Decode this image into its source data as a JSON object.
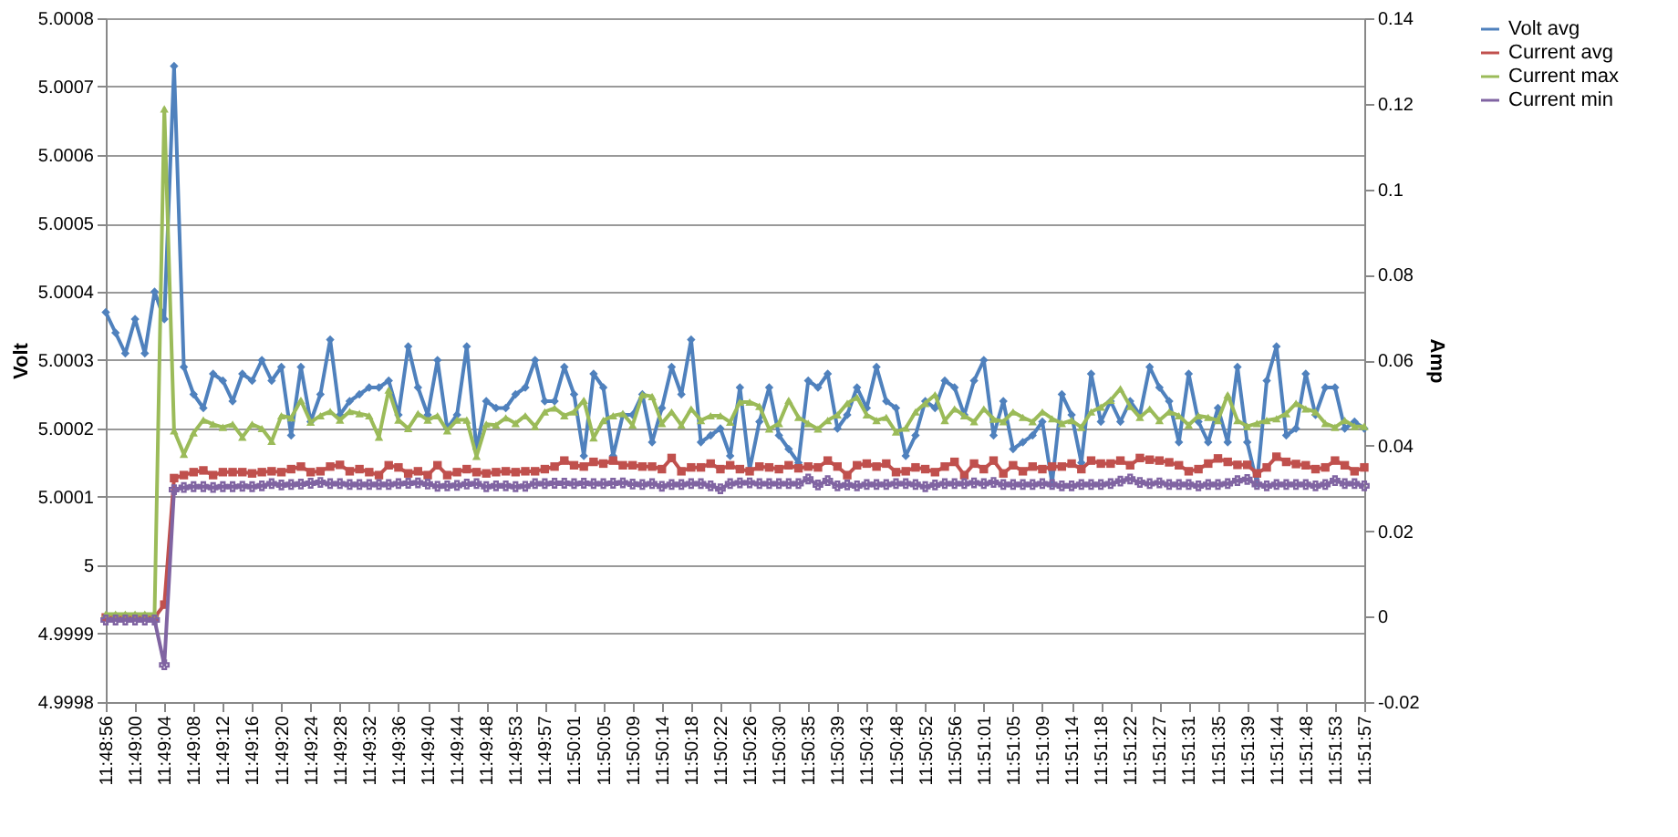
{
  "chart_data": {
    "type": "line",
    "xlabel": null,
    "ylabel": "Volt",
    "y2label": "Amp",
    "categories": [
      "11:48:56",
      null,
      null,
      "11:49:00",
      null,
      null,
      "11:49:04",
      null,
      null,
      "11:49:08",
      null,
      null,
      "11:49:12",
      null,
      null,
      "11:49:16",
      null,
      null,
      "11:49:20",
      null,
      null,
      "11:49:24",
      null,
      null,
      "11:49:28",
      null,
      null,
      "11:49:32",
      null,
      null,
      "11:49:36",
      null,
      null,
      "11:49:40",
      null,
      null,
      "11:49:44",
      null,
      null,
      "11:49:48",
      null,
      null,
      "11:49:53",
      null,
      null,
      "11:49:57",
      null,
      null,
      "11:50:01",
      null,
      null,
      "11:50:05",
      null,
      null,
      "11:50:09",
      null,
      null,
      "11:50:14",
      null,
      null,
      "11:50:18",
      null,
      null,
      "11:50:22",
      null,
      null,
      "11:50:26",
      null,
      null,
      "11:50:30",
      null,
      null,
      "11:50:35",
      null,
      null,
      "11:50:39",
      null,
      null,
      "11:50:43",
      null,
      null,
      "11:50:48",
      null,
      null,
      "11:50:52",
      null,
      null,
      "11:50:56",
      null,
      null,
      "11:51:01",
      null,
      null,
      "11:51:05",
      null,
      null,
      "11:51:09",
      null,
      null,
      "11:51:14",
      null,
      null,
      "11:51:18",
      null,
      null,
      "11:51:22",
      null,
      null,
      "11:51:27",
      null,
      null,
      "11:51:31",
      null,
      null,
      "11:51:35",
      null,
      null,
      "11:51:39",
      null,
      null,
      "11:51:44",
      null,
      null,
      "11:51:48",
      null,
      null,
      "11:51:53",
      null,
      null,
      "11:51:57"
    ],
    "series": [
      {
        "name": "Volt avg",
        "color": "#4f81bd",
        "marker": "diamond",
        "values": [
          5.00037,
          5.00034,
          5.00031,
          5.00036,
          5.00031,
          5.0004,
          5.00036,
          5.00073,
          5.00029,
          5.00025,
          5.00023,
          5.00028,
          5.00027,
          5.00024,
          5.00028,
          5.00027,
          5.0003,
          5.00027,
          5.00029,
          5.00019,
          5.00029,
          5.00021,
          5.00025,
          5.00033,
          5.00022,
          5.00024,
          5.00025,
          5.00026,
          5.00026,
          5.00027,
          5.00022,
          5.00032,
          5.00026,
          5.00022,
          5.0003,
          5.0002,
          5.00022,
          5.00032,
          5.00017,
          5.00024,
          5.00023,
          5.00023,
          5.00025,
          5.00026,
          5.0003,
          5.00024,
          5.00024,
          5.00029,
          5.00025,
          5.00016,
          5.00028,
          5.00026,
          5.00016,
          5.00022,
          5.00022,
          5.00025,
          5.00018,
          5.00023,
          5.00029,
          5.00025,
          5.00033,
          5.00018,
          5.00019,
          5.0002,
          5.00016,
          5.00026,
          5.00014,
          5.00021,
          5.00026,
          5.00019,
          5.00017,
          5.00015,
          5.00027,
          5.00026,
          5.00028,
          5.0002,
          5.00022,
          5.00026,
          5.00023,
          5.00029,
          5.00024,
          5.00023,
          5.00016,
          5.00019,
          5.00024,
          5.00023,
          5.00027,
          5.00026,
          5.00022,
          5.00027,
          5.0003,
          5.00019,
          5.00024,
          5.00017,
          5.00018,
          5.00019,
          5.00021,
          5.00012,
          5.00025,
          5.00022,
          5.00015,
          5.00028,
          5.00021,
          5.00024,
          5.00021,
          5.00024,
          5.00022,
          5.00029,
          5.00026,
          5.00024,
          5.00018,
          5.00028,
          5.00021,
          5.00018,
          5.00023,
          5.00018,
          5.00029,
          5.00018,
          5.00012,
          5.00027,
          5.00032,
          5.00019,
          5.0002,
          5.00028,
          5.00022,
          5.00026,
          5.00026,
          5.0002,
          5.00021,
          5.0002
        ]
      },
      {
        "name": "Current avg",
        "color": "#c0504d",
        "marker": "square",
        "axis": "y2",
        "values": [
          -0.0002,
          -0.0002,
          -0.0002,
          -0.0002,
          -0.0002,
          -0.0002,
          0.0028,
          0.0324,
          0.0331,
          0.0338,
          0.0342,
          0.0331,
          0.0338,
          0.0338,
          0.0338,
          0.0335,
          0.0338,
          0.034,
          0.0338,
          0.0345,
          0.0351,
          0.0338,
          0.034,
          0.0351,
          0.0355,
          0.034,
          0.0345,
          0.0338,
          0.0331,
          0.0354,
          0.0349,
          0.0335,
          0.034,
          0.0331,
          0.0354,
          0.0331,
          0.0338,
          0.0345,
          0.0338,
          0.0335,
          0.0338,
          0.034,
          0.0338,
          0.034,
          0.034,
          0.0345,
          0.0351,
          0.0365,
          0.0354,
          0.0351,
          0.0362,
          0.0358,
          0.0365,
          0.0354,
          0.0354,
          0.0351,
          0.0351,
          0.0345,
          0.0371,
          0.034,
          0.0349,
          0.0349,
          0.0358,
          0.0345,
          0.0354,
          0.0345,
          0.034,
          0.0351,
          0.0349,
          0.0345,
          0.0354,
          0.0347,
          0.0351,
          0.0349,
          0.0365,
          0.0351,
          0.0331,
          0.0354,
          0.0358,
          0.0351,
          0.0358,
          0.0338,
          0.034,
          0.0349,
          0.0345,
          0.0338,
          0.0351,
          0.0362,
          0.0331,
          0.0358,
          0.0345,
          0.0365,
          0.0335,
          0.0354,
          0.034,
          0.0351,
          0.0345,
          0.0351,
          0.0351,
          0.0358,
          0.0345,
          0.0365,
          0.0358,
          0.0358,
          0.0365,
          0.0354,
          0.0371,
          0.0367,
          0.0365,
          0.0361,
          0.0354,
          0.034,
          0.0345,
          0.0358,
          0.037,
          0.0362,
          0.0355,
          0.0355,
          0.0335,
          0.0349,
          0.0374,
          0.0362,
          0.0357,
          0.0354,
          0.0345,
          0.0349,
          0.0365,
          0.0354,
          0.034,
          0.0349
        ]
      },
      {
        "name": "Current max",
        "color": "#9bbb59",
        "marker": "triangle",
        "axis": "y2",
        "values": [
          0.0006,
          0.0006,
          0.0006,
          0.0006,
          0.0006,
          0.0006,
          0.1188,
          0.0435,
          0.038,
          0.043,
          0.046,
          0.045,
          0.0443,
          0.045,
          0.042,
          0.045,
          0.044,
          0.041,
          0.047,
          0.0465,
          0.0506,
          0.0455,
          0.047,
          0.048,
          0.046,
          0.048,
          0.0475,
          0.047,
          0.042,
          0.053,
          0.046,
          0.044,
          0.0475,
          0.046,
          0.047,
          0.0435,
          0.046,
          0.046,
          0.0375,
          0.045,
          0.0448,
          0.0465,
          0.0452,
          0.047,
          0.0445,
          0.0479,
          0.0488,
          0.047,
          0.0479,
          0.0506,
          0.0418,
          0.0459,
          0.047,
          0.0475,
          0.0448,
          0.0519,
          0.0515,
          0.0452,
          0.0479,
          0.0448,
          0.0486,
          0.0459,
          0.047,
          0.047,
          0.0455,
          0.0502,
          0.0502,
          0.0492,
          0.0439,
          0.0452,
          0.0506,
          0.0466,
          0.0452,
          0.0439,
          0.0459,
          0.0472,
          0.0499,
          0.0513,
          0.0472,
          0.0459,
          0.0466,
          0.0432,
          0.0441,
          0.0479,
          0.0499,
          0.0519,
          0.0459,
          0.0486,
          0.047,
          0.0456,
          0.0486,
          0.0462,
          0.0456,
          0.0479,
          0.0466,
          0.0456,
          0.0479,
          0.0463,
          0.0452,
          0.0459,
          0.0443,
          0.0479,
          0.049,
          0.0506,
          0.0533,
          0.0492,
          0.0466,
          0.0486,
          0.0459,
          0.0479,
          0.047,
          0.0448,
          0.047,
          0.0466,
          0.0459,
          0.0519,
          0.0459,
          0.0445,
          0.0452,
          0.0459,
          0.0463,
          0.0475,
          0.0499,
          0.0486,
          0.0479,
          0.0452,
          0.0443,
          0.0459,
          0.0445,
          0.0445
        ]
      },
      {
        "name": "Current min",
        "color": "#8064a2",
        "marker": "cross",
        "axis": "y2",
        "values": [
          -0.0008,
          -0.0008,
          -0.0008,
          -0.0008,
          -0.0008,
          -0.0008,
          -0.0113,
          0.0297,
          0.0302,
          0.0304,
          0.0304,
          0.0302,
          0.0304,
          0.0304,
          0.0305,
          0.0304,
          0.0306,
          0.0311,
          0.0308,
          0.0309,
          0.031,
          0.0312,
          0.0314,
          0.0311,
          0.0311,
          0.0309,
          0.0309,
          0.0309,
          0.0309,
          0.0309,
          0.0311,
          0.0312,
          0.0313,
          0.031,
          0.0305,
          0.0306,
          0.0307,
          0.031,
          0.0311,
          0.0304,
          0.0306,
          0.0306,
          0.0304,
          0.0305,
          0.0311,
          0.0311,
          0.0312,
          0.0312,
          0.0311,
          0.0312,
          0.0311,
          0.0311,
          0.0312,
          0.0313,
          0.031,
          0.0309,
          0.0311,
          0.0305,
          0.0309,
          0.0309,
          0.0311,
          0.0311,
          0.0306,
          0.0299,
          0.0311,
          0.0313,
          0.0313,
          0.0311,
          0.0311,
          0.0311,
          0.0311,
          0.0311,
          0.0322,
          0.0308,
          0.0318,
          0.0306,
          0.0308,
          0.0306,
          0.0309,
          0.0309,
          0.0309,
          0.0311,
          0.0311,
          0.0309,
          0.0304,
          0.0308,
          0.0311,
          0.0311,
          0.0311,
          0.0313,
          0.0311,
          0.0314,
          0.0309,
          0.0309,
          0.0309,
          0.0309,
          0.0311,
          0.0309,
          0.0306,
          0.0306,
          0.0309,
          0.0309,
          0.0309,
          0.0311,
          0.0317,
          0.0322,
          0.0314,
          0.0311,
          0.0313,
          0.0309,
          0.0309,
          0.0309,
          0.0306,
          0.0309,
          0.0309,
          0.0311,
          0.0318,
          0.0321,
          0.0309,
          0.0306,
          0.0309,
          0.0309,
          0.0309,
          0.0309,
          0.0306,
          0.0309,
          0.0318,
          0.0311,
          0.0311,
          0.0306
        ]
      }
    ],
    "ylim": [
      4.9998,
      5.0008
    ],
    "yticks": [
      4.9998,
      4.9999,
      5,
      5.0001,
      5.0002,
      5.0003,
      5.0004,
      5.0005,
      5.0006,
      5.0007,
      5.0008
    ],
    "y2lim": [
      -0.02,
      0.14
    ],
    "y2ticks": [
      -0.02,
      0,
      0.02,
      0.04,
      0.06,
      0.08,
      0.1,
      0.12,
      0.14
    ],
    "grid": "y",
    "legend": "right",
    "line_style": "solid"
  }
}
